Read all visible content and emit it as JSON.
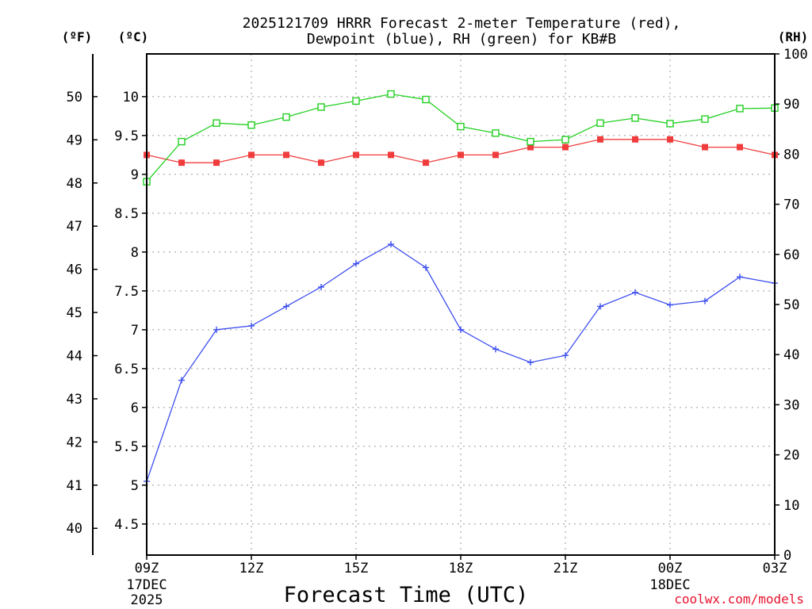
{
  "chart_data": {
    "type": "line",
    "title_lines": [
      "2025121709 HRRR Forecast 2-meter Temperature (red),",
      "Dewpoint (blue), RH (green) for KB#B"
    ],
    "xlabel": "Forecast Time (UTC)",
    "credit": "coolwx.com/models",
    "hours": [
      0,
      1,
      2,
      3,
      4,
      5,
      6,
      7,
      8,
      9,
      10,
      11,
      12,
      13,
      14,
      15,
      16,
      17,
      18
    ],
    "x_ticks": [
      {
        "hour": 0,
        "label": "09Z",
        "sub": [
          "17DEC",
          "2025"
        ]
      },
      {
        "hour": 3,
        "label": "12Z",
        "sub": []
      },
      {
        "hour": 6,
        "label": "15Z",
        "sub": []
      },
      {
        "hour": 9,
        "label": "18Z",
        "sub": []
      },
      {
        "hour": 12,
        "label": "21Z",
        "sub": []
      },
      {
        "hour": 15,
        "label": "00Z",
        "sub": [
          "18DEC"
        ]
      },
      {
        "hour": 18,
        "label": "03Z",
        "sub": []
      }
    ],
    "axes": {
      "celsius": {
        "unit_label": "(ºC)",
        "min": 4.1,
        "max": 10.55,
        "ticks": [
          "4.5",
          "5",
          "5.5",
          "6",
          "6.5",
          "7",
          "7.5",
          "8",
          "8.5",
          "9",
          "9.5",
          "10"
        ]
      },
      "fahrenheit": {
        "unit_label": "(ºF)",
        "ticks": [
          "40",
          "41",
          "42",
          "43",
          "44",
          "45",
          "46",
          "47",
          "48",
          "49",
          "50"
        ]
      },
      "rh": {
        "unit_label": "(RH)",
        "min": 0,
        "max": 100,
        "ticks": [
          "0",
          "10",
          "20",
          "30",
          "40",
          "50",
          "60",
          "70",
          "80",
          "90",
          "100"
        ]
      }
    },
    "series": [
      {
        "name": "2-meter Temperature",
        "axis": "celsius",
        "color": "#f03c3c",
        "marker": "filled-square",
        "values": [
          9.25,
          9.15,
          9.15,
          9.25,
          9.25,
          9.15,
          9.25,
          9.25,
          9.15,
          9.25,
          9.25,
          9.35,
          9.35,
          9.45,
          9.45,
          9.45,
          9.35,
          9.35,
          9.25
        ]
      },
      {
        "name": "Dewpoint",
        "axis": "celsius",
        "color": "#3c4ef0",
        "marker": "plus",
        "values": [
          5.05,
          6.35,
          7.0,
          7.05,
          7.3,
          7.55,
          7.85,
          8.1,
          7.8,
          7.0,
          6.75,
          6.58,
          6.67,
          7.3,
          7.48,
          7.32,
          7.37,
          7.68,
          7.6
        ]
      },
      {
        "name": "Relative Humidity",
        "axis": "rh",
        "color": "#22d022",
        "marker": "open-square",
        "values": [
          74.5,
          82.5,
          86.2,
          85.8,
          87.4,
          89.4,
          90.6,
          92.0,
          90.9,
          85.5,
          84.2,
          82.5,
          82.9,
          86.2,
          87.2,
          86.1,
          87.0,
          89.1,
          89.2
        ]
      }
    ]
  }
}
